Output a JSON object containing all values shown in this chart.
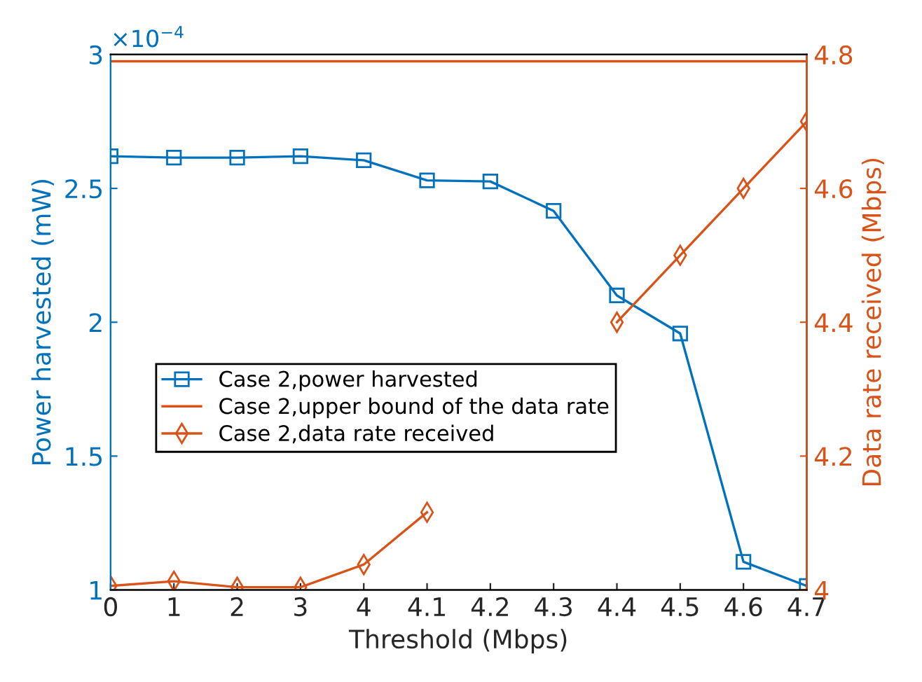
{
  "chart_data": {
    "type": "line",
    "xlabel": "Threshold (Mbps)",
    "ylabel": "Power harvested (mW)",
    "y2label": "Data rate received (Mbps)",
    "categories": [
      "0",
      "1",
      "2",
      "3",
      "4",
      "4.1",
      "4.2",
      "4.3",
      "4.4",
      "4.5",
      "4.6",
      "4.7"
    ],
    "ylim": [
      1,
      3
    ],
    "yticks": [
      1,
      1.5,
      2,
      2.5,
      3
    ],
    "y2lim": [
      4,
      4.8
    ],
    "y2ticks": [
      4,
      4.2,
      4.4,
      4.6,
      4.8
    ],
    "annotations": [
      "×10$^{−4}$"
    ],
    "legend": "center left",
    "grid": false,
    "series": [
      {
        "name": "Case 2,power harvested",
        "color": "#0072bd",
        "marker": "square",
        "values": [
          2.62,
          2.615,
          2.615,
          2.62,
          2.605,
          2.53,
          2.526,
          2.416,
          2.1,
          1.958,
          1.105,
          1.015
        ]
      },
      {
        "name": "Case 2,upper bound of the data rate",
        "color": "#d95319",
        "marker": "none",
        "axis": "y2",
        "values": [
          4.79,
          4.79,
          4.79,
          4.79,
          4.79,
          4.79,
          4.79,
          4.79,
          4.79,
          4.79,
          4.79,
          4.79
        ]
      },
      {
        "name": "Case 2,data rate received",
        "color": "#d95319",
        "marker": "diamond",
        "axis": "y2",
        "values": [
          4.006,
          4.013,
          4.004,
          4.004,
          4.038,
          4.116,
          null,
          null,
          4.4,
          4.5,
          4.6,
          4.7
        ]
      }
    ]
  }
}
